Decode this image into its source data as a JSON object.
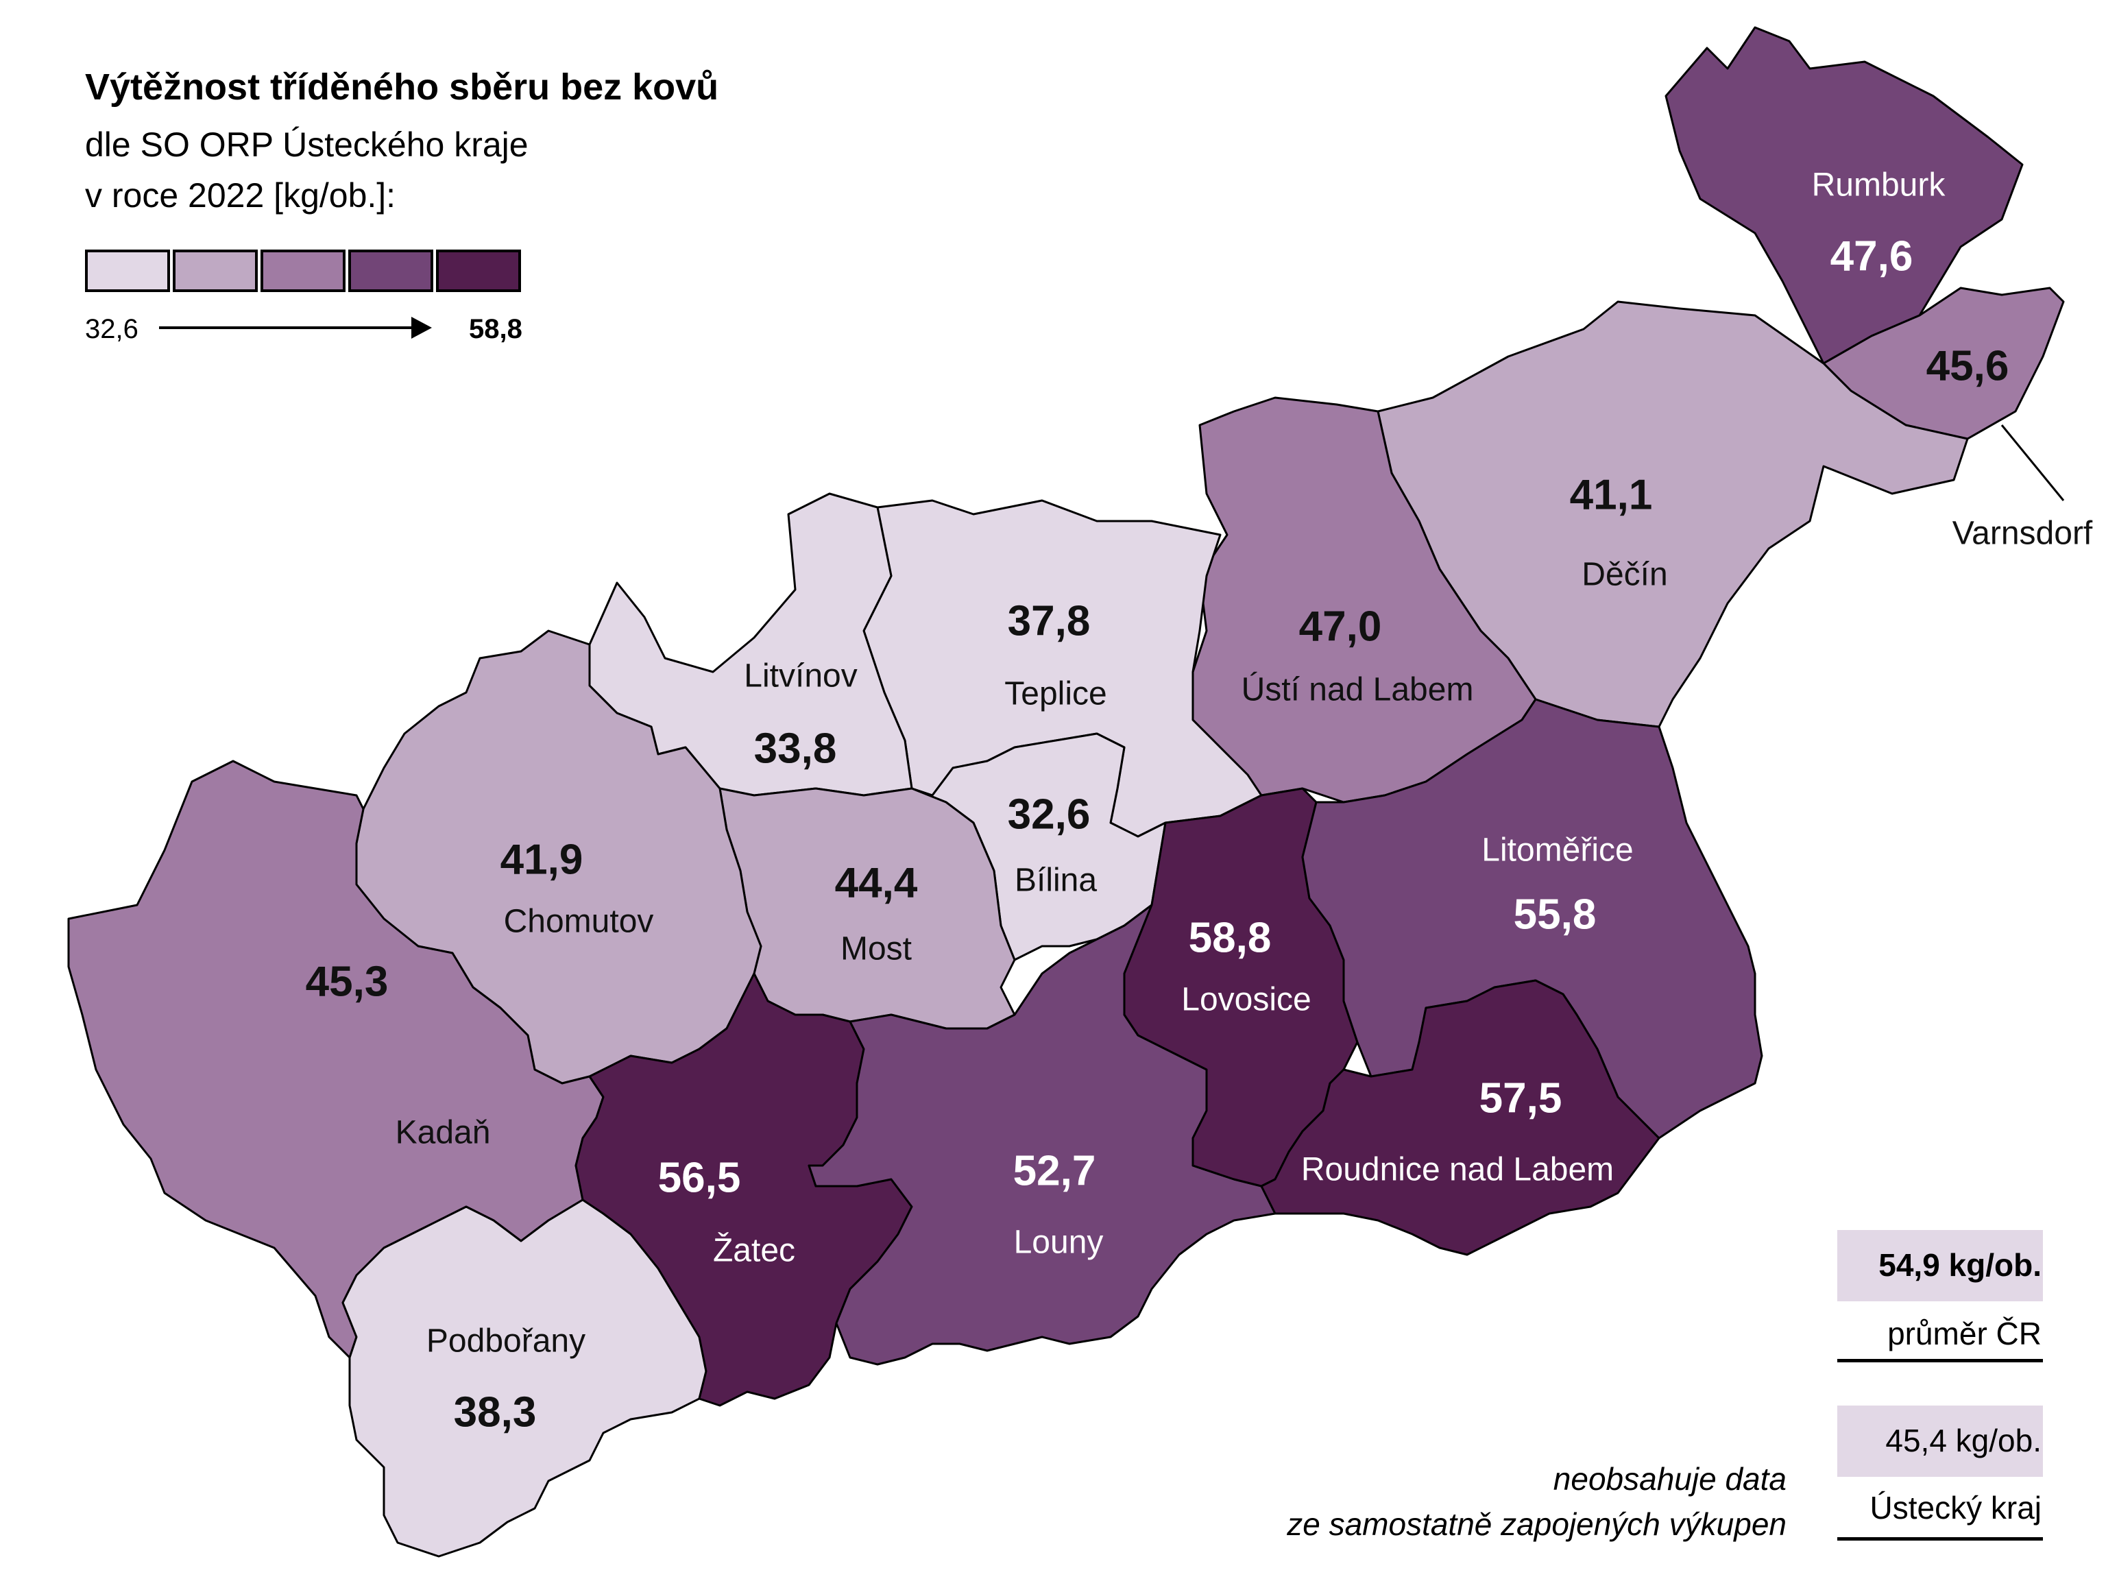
{
  "title": "Výtěžnost tříděného sběru bez kovů",
  "subtitle_line1": "dle SO ORP Ústeckého kraje",
  "subtitle_line2": "v roce 2022 [kg/ob.]:",
  "legend": {
    "min": "32,6",
    "max": "58,8",
    "colors": [
      "#e2d8e6",
      "#bfa9c3",
      "#a07ba3",
      "#724577",
      "#531e4e"
    ]
  },
  "regions": [
    {
      "name": "Rumburk",
      "value": "47,6",
      "color": "#724577"
    },
    {
      "name": "Varnsdorf",
      "value": "45,6",
      "color": "#a07ba3"
    },
    {
      "name": "Děčín",
      "value": "41,1",
      "color": "#bfa9c3"
    },
    {
      "name": "Ústí nad Labem",
      "value": "47,0",
      "color": "#a07ba3"
    },
    {
      "name": "Teplice",
      "value": "37,8",
      "color": "#e2d8e6"
    },
    {
      "name": "Litvínov",
      "value": "33,8",
      "color": "#e2d8e6"
    },
    {
      "name": "Bílina",
      "value": "32,6",
      "color": "#e2d8e6"
    },
    {
      "name": "Most",
      "value": "44,4",
      "color": "#bfa9c3"
    },
    {
      "name": "Chomutov",
      "value": "41,9",
      "color": "#bfa9c3"
    },
    {
      "name": "Kadaň",
      "value": "45,3",
      "color": "#a07ba3"
    },
    {
      "name": "Podbořany",
      "value": "38,3",
      "color": "#e2d8e6"
    },
    {
      "name": "Žatec",
      "value": "56,5",
      "color": "#531e4e"
    },
    {
      "name": "Louny",
      "value": "52,7",
      "color": "#724577"
    },
    {
      "name": "Lovosice",
      "value": "58,8",
      "color": "#531e4e"
    },
    {
      "name": "Litoměřice",
      "value": "55,8",
      "color": "#724577"
    },
    {
      "name": "Roudnice nad Labem",
      "value": "57,5",
      "color": "#531e4e"
    }
  ],
  "stats": {
    "cr_value": "54,9 kg/ob.",
    "cr_label": "průměr ČR",
    "kraj_value": "45,4 kg/ob.",
    "kraj_label": "Ústecký kraj"
  },
  "note_line1": "neobsahuje data",
  "note_line2": "ze samostatně zapojených výkupen"
}
